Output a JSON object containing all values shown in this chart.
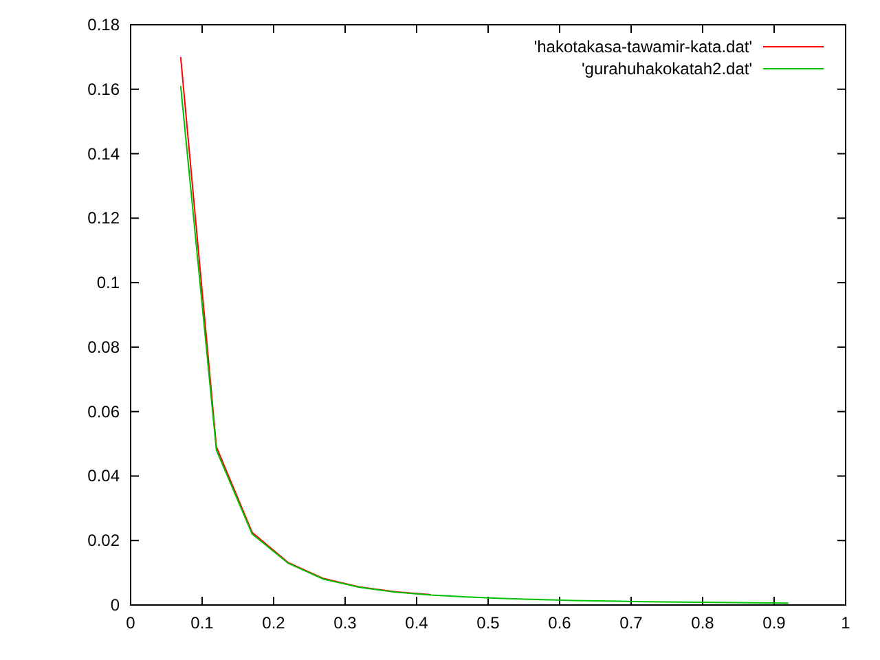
{
  "chart_data": {
    "type": "line",
    "x": [
      0.07,
      0.12,
      0.17,
      0.22,
      0.27,
      0.32,
      0.37,
      0.42,
      0.47,
      0.52,
      0.57,
      0.62,
      0.67,
      0.72,
      0.77,
      0.82,
      0.87,
      0.92
    ],
    "series": [
      {
        "name": "'hakotakasa-tawamir-kata.dat'",
        "color": "#ff0000",
        "values": [
          0.17,
          0.049,
          0.0225,
          0.0132,
          0.0082,
          0.0056,
          0.0041,
          0.0032,
          null,
          null,
          null,
          null,
          null,
          null,
          null,
          null,
          null,
          null
        ]
      },
      {
        "name": "'gurahuhakokatah2.dat'",
        "color": "#00c000",
        "values": [
          0.161,
          0.048,
          0.022,
          0.013,
          0.008,
          0.0055,
          0.004,
          0.0031,
          0.0025,
          0.002,
          0.0017,
          0.0014,
          0.0012,
          0.001,
          0.0009,
          0.0008,
          0.0007,
          0.0006
        ]
      }
    ],
    "xlim": [
      0,
      1
    ],
    "xticks": [
      0,
      0.1,
      0.2,
      0.3,
      0.4,
      0.5,
      0.6,
      0.7,
      0.8,
      0.9,
      1
    ],
    "ylim": [
      0,
      0.18
    ],
    "yticks": [
      0,
      0.02,
      0.04,
      0.06,
      0.08,
      0.1,
      0.12,
      0.14,
      0.16,
      0.18
    ],
    "legend": "top right",
    "grid": false,
    "marker": "none",
    "line_style": "solid"
  }
}
